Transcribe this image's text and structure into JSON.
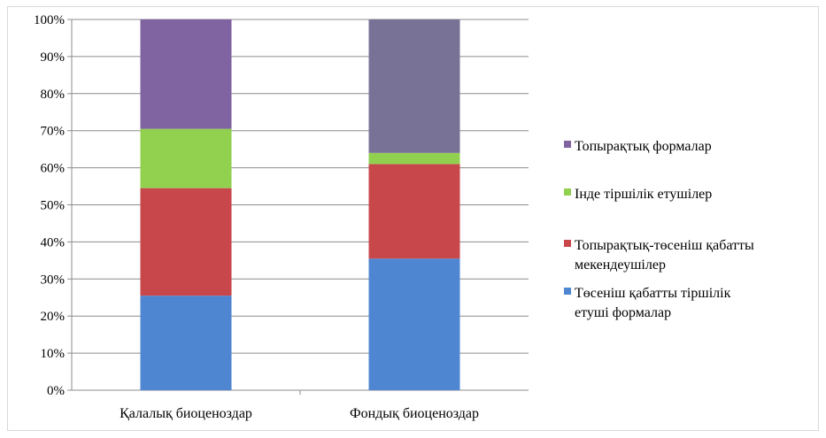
{
  "chart_data": {
    "type": "bar",
    "stacked": true,
    "percent_stacked": true,
    "categories": [
      "Қалалық  биоценоздар",
      "Фондық  биоценоздар"
    ],
    "ylim": [
      0,
      100
    ],
    "yticks": [
      "0%",
      "10%",
      "20%",
      "30%",
      "40%",
      "50%",
      "60%",
      "70%",
      "80%",
      "90%",
      "100%"
    ],
    "grid": true,
    "legend_position": "right",
    "series": [
      {
        "name": "Төсеніш қабатты тіршілік етуші формалар",
        "legend_lines": [
          "Төсеніш қабатты тіршілік",
          "етуші формалар"
        ],
        "values": [
          25.5,
          35.5
        ],
        "color": "#4f86d2"
      },
      {
        "name": "Топырақтық-төсеніш қабатты мекендеушілер",
        "legend_lines": [
          "Топырақтық-төсеніш қабатты",
          "мекендеушілер"
        ],
        "values": [
          29,
          25.5
        ],
        "color": "#c7474a"
      },
      {
        "name": "Інде тіршілік етушілер",
        "legend_lines": [
          "Інде  тіршілік  етушілер"
        ],
        "values": [
          16,
          3
        ],
        "color": "#92d050"
      },
      {
        "name": "Топырақтық формалар",
        "legend_lines": [
          "Топырақтық  формалар"
        ],
        "values": [
          29.5,
          36
        ],
        "color": "#8064a2"
      }
    ],
    "bar_overrides": [
      {
        "bar": 1,
        "series": 3,
        "color": "#787396"
      }
    ]
  }
}
